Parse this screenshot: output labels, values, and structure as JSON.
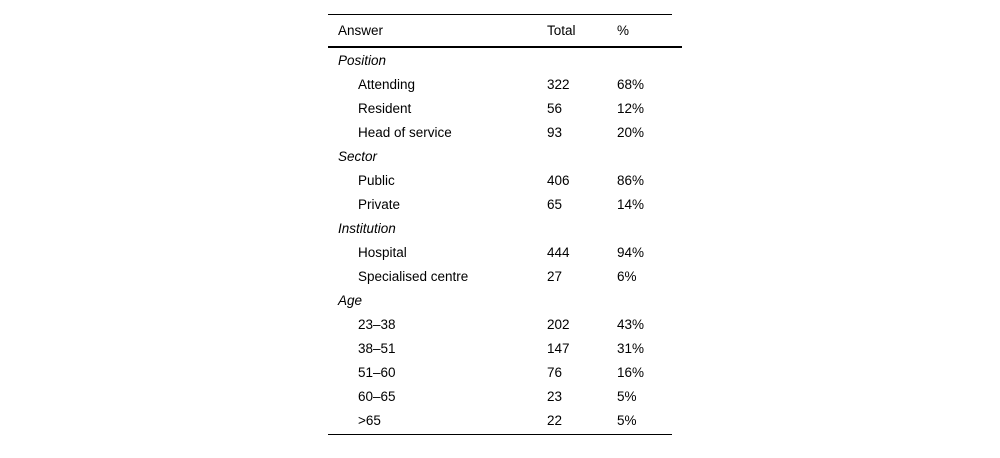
{
  "colors": {
    "background": "#ffffff",
    "text": "#000000",
    "rule": "#000000"
  },
  "table": {
    "columns": [
      "Answer",
      "Total",
      "%"
    ],
    "sections": [
      {
        "label": "Position",
        "rows": [
          {
            "answer": "Attending",
            "total": "322",
            "pct": "68%"
          },
          {
            "answer": "Resident",
            "total": "56",
            "pct": "12%"
          },
          {
            "answer": "Head of service",
            "total": "93",
            "pct": "20%"
          }
        ]
      },
      {
        "label": "Sector",
        "rows": [
          {
            "answer": "Public",
            "total": "406",
            "pct": "86%"
          },
          {
            "answer": "Private",
            "total": "65",
            "pct": "14%"
          }
        ]
      },
      {
        "label": "Institution",
        "rows": [
          {
            "answer": "Hospital",
            "total": "444",
            "pct": "94%"
          },
          {
            "answer": "Specialised centre",
            "total": "27",
            "pct": "6%"
          }
        ]
      },
      {
        "label": "Age",
        "rows": [
          {
            "answer": "23–38",
            "total": "202",
            "pct": "43%"
          },
          {
            "answer": "38–51",
            "total": "147",
            "pct": "31%"
          },
          {
            "answer": "51–60",
            "total": "76",
            "pct": "16%"
          },
          {
            "answer": "60–65",
            "total": "23",
            "pct": "5%"
          },
          {
            "answer": ">65",
            "total": "22",
            "pct": "5%"
          }
        ]
      }
    ]
  }
}
